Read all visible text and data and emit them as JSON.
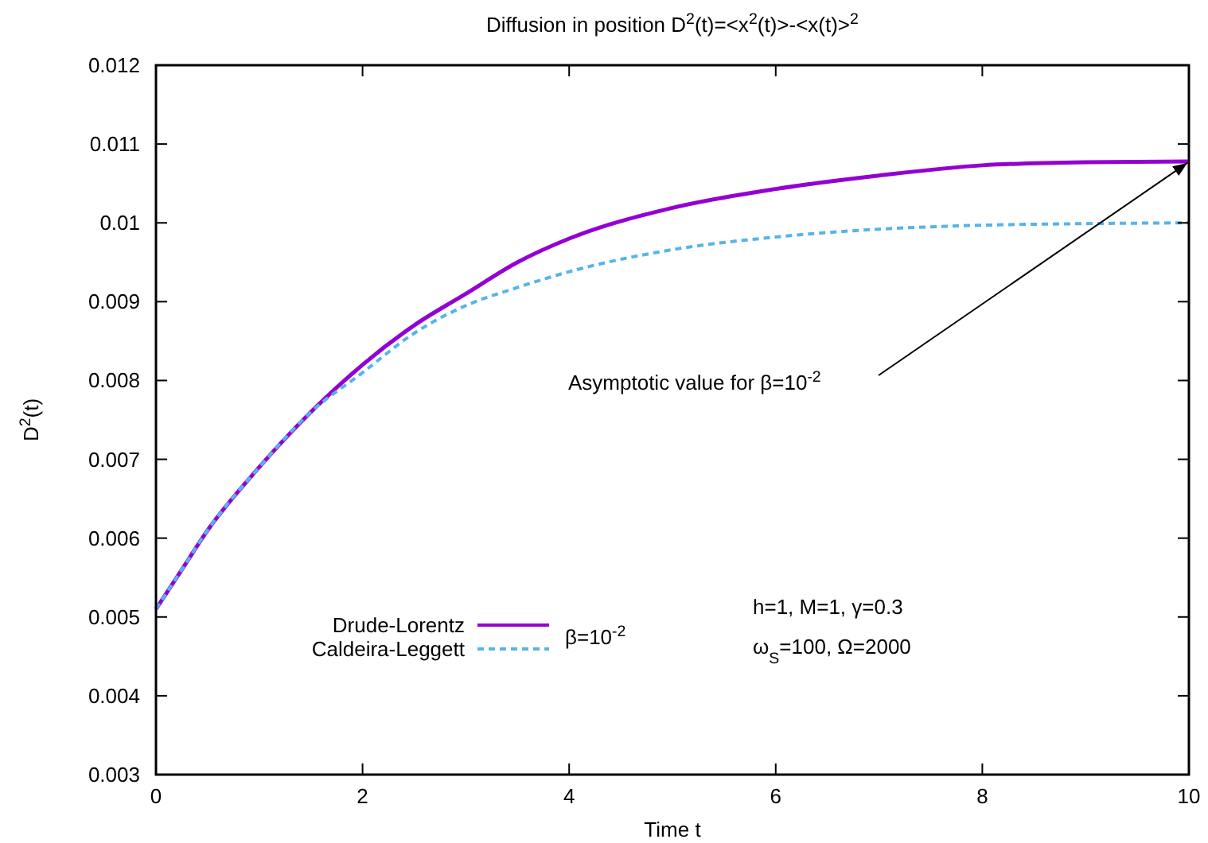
{
  "chart_data": {
    "type": "line",
    "title": "Diffusion in position D$^{2}$(t)=<x$^{2}$(t)>-<x(t)>$^{2}$",
    "xlabel": "Time t",
    "ylabel": "D$^{2}$(t)",
    "xlim": [
      0,
      10
    ],
    "xticks": [
      0,
      2,
      4,
      6,
      8,
      10
    ],
    "ylim": [
      0.003,
      0.012
    ],
    "yticks": [
      0.003,
      0.004,
      0.005,
      0.006,
      0.007,
      0.008,
      0.009,
      0.01,
      0.011,
      0.012
    ],
    "grid": false,
    "legend": "bottom left",
    "legend_title": "β=10$^{-2}$",
    "series": [
      {
        "name": "Drude-Lorentz",
        "color": "#9400d3",
        "line_style": "solid",
        "x": [
          0,
          0.25,
          0.5,
          1,
          1.5,
          2,
          2.5,
          3,
          3.5,
          4,
          5,
          6,
          7,
          8,
          9,
          10
        ],
        "values": [
          0.0051,
          0.0056,
          0.0061,
          0.0069,
          0.0076,
          0.0082,
          0.0087,
          0.0091,
          0.0095,
          0.0098,
          0.01019,
          0.01043,
          0.0106,
          0.01073,
          0.01077,
          0.01078
        ]
      },
      {
        "name": "Caldeira-Leggett",
        "color": "#56b4e9",
        "line_style": "dashed",
        "x": [
          0,
          0.25,
          0.5,
          1,
          1.5,
          2,
          2.5,
          3,
          3.5,
          4,
          5,
          6,
          7,
          8,
          9,
          10
        ],
        "values": [
          0.0051,
          0.0056,
          0.0061,
          0.0069,
          0.0076,
          0.0081,
          0.0086,
          0.00895,
          0.00918,
          0.00938,
          0.00966,
          0.00982,
          0.00992,
          0.00997,
          0.00999,
          0.01
        ]
      }
    ],
    "annotations": [
      "Asymptotic value for β=10$^{-2}$",
      "h=1, M=1, γ=0.3",
      "ω$_{S}$=100, Ω=2000"
    ]
  }
}
